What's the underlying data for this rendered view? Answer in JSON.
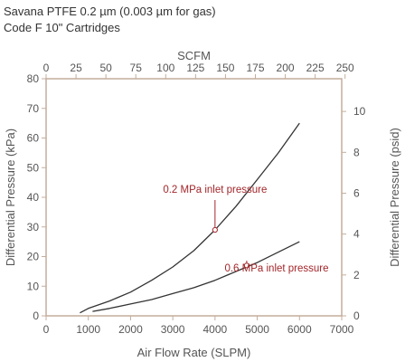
{
  "title": "Savana PTFE 0.2 µm (0.003 µm for gas)",
  "subtitle": "Code F 10\" Cartridges",
  "colors": {
    "axis": "#c4ad9c",
    "text": "#555555",
    "curve": "#333333",
    "annotation": "#a3262a"
  },
  "chart_data": {
    "type": "line",
    "xlabel": "Air Flow Rate (SLPM)",
    "xlim": [
      0,
      7000
    ],
    "x_ticks": [
      0,
      1000,
      2000,
      3000,
      4000,
      5000,
      6000,
      7000
    ],
    "ylabel": "Differential Pressure (kPa)",
    "ylim": [
      0,
      80
    ],
    "y_ticks": [
      0,
      10,
      20,
      30,
      40,
      50,
      60,
      70,
      80
    ],
    "top_axis": {
      "label": "SCFM",
      "ticks": [
        0,
        25,
        50,
        75,
        100,
        125,
        150,
        175,
        200,
        225,
        250
      ],
      "lim": [
        0,
        247.2
      ]
    },
    "right_axis": {
      "label": "Differential Pressure (psid)",
      "ticks": [
        0,
        2,
        4,
        6,
        8,
        10
      ],
      "lim": [
        0,
        11.6
      ]
    },
    "grid": false,
    "series": [
      {
        "name": "0.2 MPa inlet pressure",
        "x": [
          800,
          1000,
          1500,
          2000,
          2500,
          3000,
          3500,
          4000,
          4500,
          5000,
          5500,
          6000
        ],
        "y": [
          1,
          2.5,
          5,
          8,
          12,
          16.5,
          22,
          29,
          37,
          46,
          55,
          65
        ]
      },
      {
        "name": "0.6 MPa inlet pressure",
        "x": [
          1100,
          1500,
          2000,
          2500,
          3000,
          3500,
          4000,
          4500,
          5000,
          5500,
          6000
        ],
        "y": [
          1.5,
          2.5,
          4,
          5.5,
          7.5,
          9.5,
          12,
          15,
          18,
          21.5,
          25
        ]
      }
    ],
    "annotations": [
      {
        "text": "0.2 MPa inlet pressure",
        "x": 4000,
        "y": 29
      },
      {
        "text": "0.6 MPa inlet pressure",
        "x": 4750,
        "y": 17
      }
    ]
  }
}
